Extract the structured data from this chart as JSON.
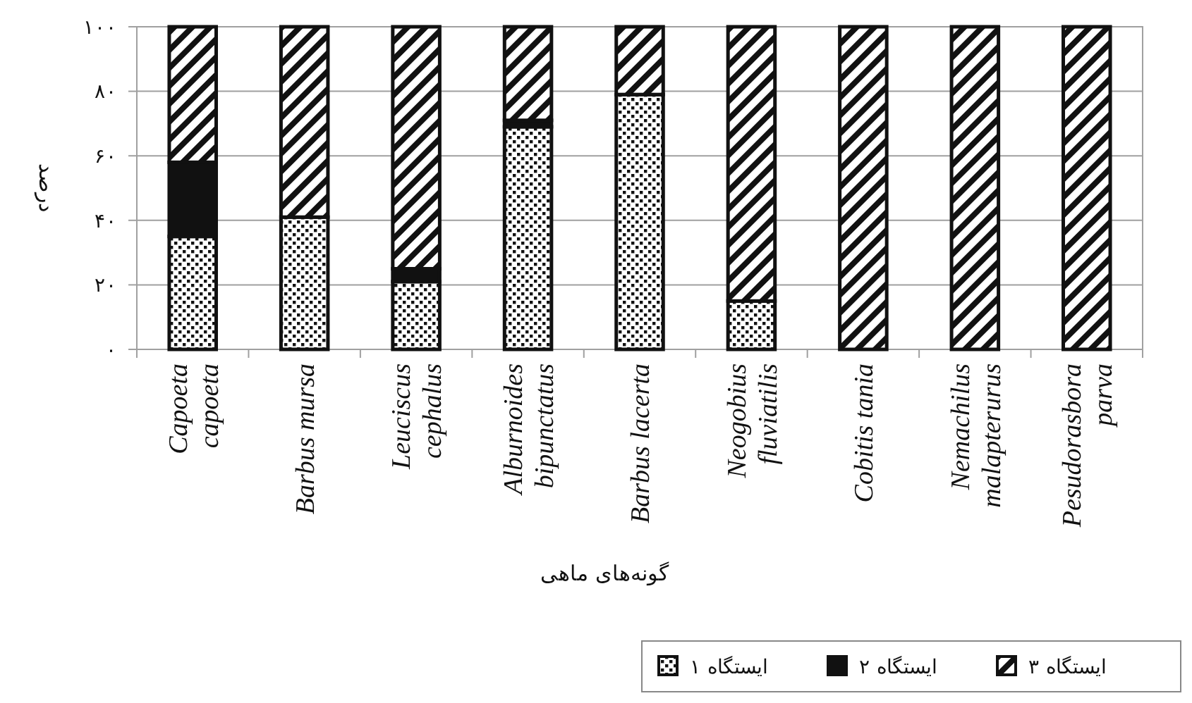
{
  "chart_data": {
    "type": "bar",
    "stacked": true,
    "xlabel": "گونه‌های ماهی",
    "ylabel": "درصد",
    "categories": [
      "Capoeta capoeta",
      "Barbus mursa",
      "Leuciscus cephalus",
      "Alburnoides bipunctatus",
      "Barbus lacerta",
      "Neogobius fluviatilis",
      "Cobitis tania",
      "Nemachilus malapterurus",
      "Pesudorasbora parva"
    ],
    "series": [
      {
        "name": "ایستگاه ۱",
        "color": "#111111",
        "values": [
          35,
          41,
          21,
          69,
          79,
          15,
          0,
          0,
          0
        ]
      },
      {
        "name": "ایستگاه ۲",
        "color": "#111111",
        "values": [
          23,
          0,
          4,
          2,
          0,
          0,
          0,
          0,
          0
        ]
      },
      {
        "name": "ایستگاه ۳",
        "color": "#111111",
        "values": [
          42,
          59,
          75,
          29,
          21,
          85,
          100,
          100,
          100
        ]
      }
    ],
    "ylim": [
      0,
      100
    ],
    "yticks": [
      {
        "value": 0,
        "label": "۰"
      },
      {
        "value": 20,
        "label": "۲۰"
      },
      {
        "value": 40,
        "label": "۴۰"
      },
      {
        "value": 60,
        "label": "۶۰"
      },
      {
        "value": 80,
        "label": "۸۰"
      },
      {
        "value": 100,
        "label": "۱۰۰"
      }
    ],
    "grid": "y",
    "legend": "bottom right"
  }
}
